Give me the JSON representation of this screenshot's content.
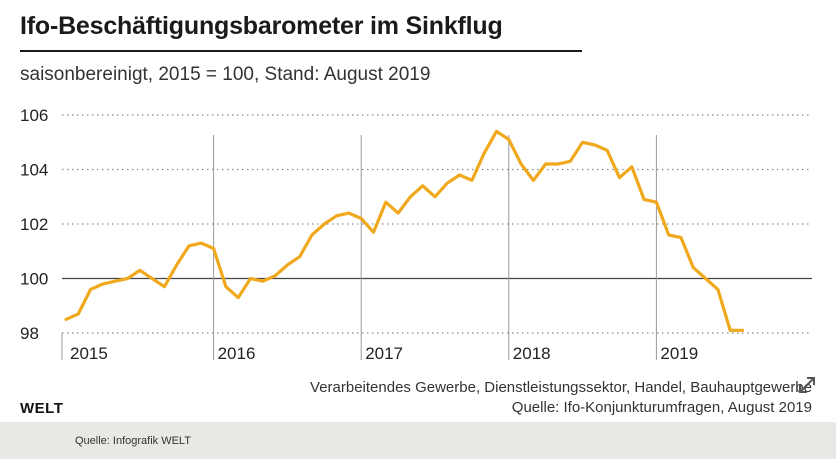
{
  "header": {
    "title": "Ifo-Beschäftigungsbarometer im Sinkflug",
    "subtitle": "saisonbereinigt, 2015 = 100, Stand: August 2019"
  },
  "notes": {
    "line1": "Verarbeitendes Gewerbe, Dienstleistungssektor, Handel, Bauhauptgewerbe",
    "line2": "Quelle: Ifo-Konjunkturumfragen, August 2019"
  },
  "brand": "WELT",
  "footer": {
    "caption": "Quelle: Infografik WELT"
  },
  "icons": {
    "expand": "expand-icon"
  },
  "chart_data": {
    "type": "line",
    "title": "Ifo-Beschäftigungsbarometer im Sinkflug",
    "subtitle": "saisonbereinigt, 2015 = 100, Stand: August 2019",
    "xlabel": "",
    "ylabel": "",
    "ylim": [
      98,
      106
    ],
    "xlim": [
      "2015-01",
      "2019-08"
    ],
    "yticks": [
      98,
      100,
      102,
      104,
      106
    ],
    "xticks": [
      "2015",
      "2016",
      "2017",
      "2018",
      "2019"
    ],
    "reference_line": 100,
    "grid": "horizontal dotted",
    "line_color": "#f0a81c",
    "series": [
      {
        "x": [
          "2015-01",
          "2015-02",
          "2015-03",
          "2015-04",
          "2015-05",
          "2015-06",
          "2015-07",
          "2015-08",
          "2015-09",
          "2015-10",
          "2015-11",
          "2015-12",
          "2016-01",
          "2016-02",
          "2016-03",
          "2016-04",
          "2016-05",
          "2016-06",
          "2016-07",
          "2016-08",
          "2016-09",
          "2016-10",
          "2016-11",
          "2016-12",
          "2017-01",
          "2017-02",
          "2017-03",
          "2017-04",
          "2017-05",
          "2017-06",
          "2017-07",
          "2017-08",
          "2017-09",
          "2017-10",
          "2017-11",
          "2017-12",
          "2018-01",
          "2018-02",
          "2018-03",
          "2018-04",
          "2018-05",
          "2018-06",
          "2018-07",
          "2018-08",
          "2018-09",
          "2018-10",
          "2018-11",
          "2018-12",
          "2019-01",
          "2019-02",
          "2019-03",
          "2019-04",
          "2019-05",
          "2019-06",
          "2019-07",
          "2019-08"
        ],
        "values": [
          98.5,
          98.7,
          99.6,
          99.8,
          99.9,
          100.0,
          100.3,
          100.0,
          99.7,
          100.5,
          101.2,
          101.3,
          101.1,
          99.7,
          99.3,
          100.0,
          99.9,
          100.1,
          100.5,
          100.8,
          101.6,
          102.0,
          102.3,
          102.4,
          102.2,
          101.7,
          102.8,
          102.4,
          103.0,
          103.4,
          103.0,
          103.5,
          103.8,
          103.6,
          104.6,
          105.4,
          105.1,
          104.2,
          103.6,
          104.2,
          104.2,
          104.3,
          105.0,
          104.9,
          104.7,
          103.7,
          104.1,
          102.9,
          102.8,
          101.6,
          101.5,
          100.4,
          100.0,
          99.6,
          98.1,
          98.1
        ]
      }
    ]
  }
}
